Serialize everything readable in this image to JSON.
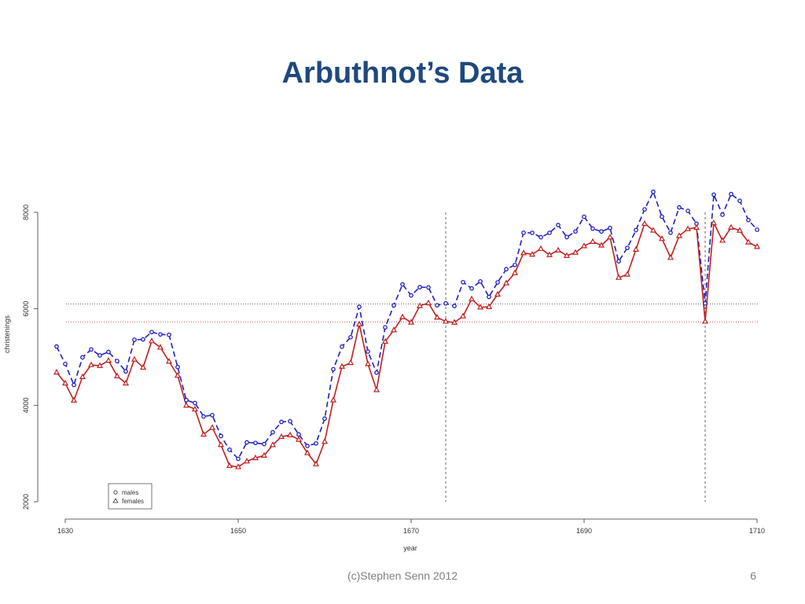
{
  "slide": {
    "title": "Arbuthnot’s Data",
    "footer": "(c)Stephen Senn 2012",
    "page_number": "6"
  },
  "chart_data": {
    "type": "line",
    "xlabel": "year",
    "ylabel": "christenings",
    "xlim": [
      1629,
      1710
    ],
    "ylim": [
      2000,
      8000
    ],
    "x_ticks": [
      1630,
      1650,
      1670,
      1690,
      1710
    ],
    "y_ticks": [
      2000,
      4000,
      6000,
      8000
    ],
    "legend_position": "bottom-left",
    "x": [
      1629,
      1630,
      1631,
      1632,
      1633,
      1634,
      1635,
      1636,
      1637,
      1638,
      1639,
      1640,
      1641,
      1642,
      1643,
      1644,
      1645,
      1646,
      1647,
      1648,
      1649,
      1650,
      1651,
      1652,
      1653,
      1654,
      1655,
      1656,
      1657,
      1658,
      1659,
      1660,
      1661,
      1662,
      1663,
      1664,
      1665,
      1666,
      1667,
      1668,
      1669,
      1670,
      1671,
      1672,
      1673,
      1674,
      1675,
      1676,
      1677,
      1678,
      1679,
      1680,
      1681,
      1682,
      1683,
      1684,
      1685,
      1686,
      1687,
      1688,
      1689,
      1690,
      1691,
      1692,
      1693,
      1694,
      1695,
      1696,
      1697,
      1698,
      1699,
      1700,
      1701,
      1702,
      1703,
      1704,
      1705,
      1706,
      1707,
      1708,
      1709,
      1710
    ],
    "series": [
      {
        "name": "males",
        "color": "#2020c0",
        "line_style": "dashed",
        "marker": "circle",
        "values": [
          5218,
          4858,
          4422,
          4994,
          5158,
          5035,
          5106,
          4917,
          4703,
          5359,
          5366,
          5518,
          5470,
          5460,
          4793,
          4107,
          4047,
          3768,
          3796,
          3363,
          3079,
          2890,
          3231,
          3220,
          3196,
          3441,
          3655,
          3668,
          3396,
          3157,
          3209,
          3724,
          4748,
          5216,
          5411,
          6041,
          5114,
          4678,
          5616,
          6073,
          6506,
          6278,
          6449,
          6443,
          6073,
          6113,
          6058,
          6552,
          6423,
          6568,
          6247,
          6548,
          6822,
          6909,
          7577,
          7575,
          7484,
          7575,
          7737,
          7487,
          7604,
          7909,
          7662,
          7602,
          7676,
          6985,
          7263,
          7632,
          8062,
          8426,
          7911,
          7578,
          8102,
          8031,
          7765,
          6113,
          8366,
          7952,
          8379,
          8239,
          7840,
          7640
        ]
      },
      {
        "name": "females",
        "color": "#c02020",
        "line_style": "solid",
        "marker": "triangle",
        "values": [
          4683,
          4457,
          4102,
          4590,
          4839,
          4820,
          4928,
          4605,
          4457,
          4952,
          4784,
          5332,
          5200,
          4910,
          4617,
          3997,
          3919,
          3395,
          3536,
          3181,
          2746,
          2722,
          2840,
          2908,
          2959,
          3179,
          3349,
          3382,
          3289,
          3013,
          2781,
          3247,
          4107,
          4803,
          4881,
          5681,
          4858,
          4319,
          5322,
          5560,
          5829,
          5719,
          6061,
          6120,
          5822,
          5738,
          5717,
          5847,
          6203,
          6033,
          6041,
          6299,
          6533,
          6744,
          7158,
          7127,
          7246,
          7119,
          7214,
          7101,
          7167,
          7302,
          7392,
          7316,
          7483,
          6647,
          6713,
          7229,
          7767,
          7626,
          7452,
          7061,
          7514,
          7656,
          7683,
          5738,
          7779,
          7417,
          7687,
          7623,
          7380,
          7288
        ]
      }
    ],
    "reference_lines": {
      "horizontal": [
        {
          "y": 6100,
          "color": "#404040",
          "style": "dotted"
        },
        {
          "y": 5730,
          "color": "#c02020",
          "style": "dotted"
        }
      ],
      "vertical": [
        {
          "x": 1674,
          "color": "#404040",
          "style": "dashed"
        },
        {
          "x": 1704,
          "color": "#404040",
          "style": "dashed"
        }
      ]
    }
  }
}
